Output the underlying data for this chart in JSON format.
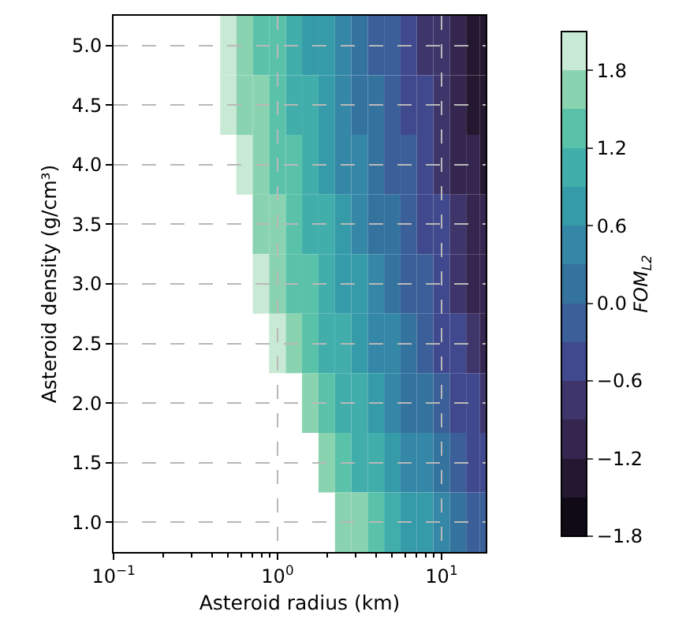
{
  "chart_data": {
    "type": "heatmap",
    "xlabel": "Asteroid radius (km)",
    "ylabel": "Asteroid density (g/cm³)",
    "clabel": "FOM$_{L2}$",
    "x": [
      0.4,
      0.5,
      0.63,
      0.79,
      1,
      1.26,
      1.58,
      2,
      2.51,
      3.16,
      3.98,
      5.01,
      6.31,
      7.94,
      10,
      12.59,
      15.85,
      18.6
    ],
    "y_categories": [
      "5.0",
      "4.5",
      "4.0",
      "3.5",
      "3.0",
      "2.5",
      "2.0",
      "1.5",
      "1.0"
    ],
    "cells": [
      [
        null,
        1.93,
        1.71,
        1.5,
        1.28,
        1.06,
        0.85,
        0.63,
        0.42,
        0.2,
        -0.02,
        -0.23,
        -0.45,
        -0.66,
        -0.88,
        -1.1,
        -1.31,
        -1.46
      ],
      [
        null,
        2.01,
        1.8,
        1.58,
        1.37,
        1.15,
        0.93,
        0.72,
        0.5,
        0.29,
        0.07,
        -0.15,
        -0.36,
        -0.58,
        -0.79,
        -1.01,
        -1.23,
        -1.38
      ],
      [
        null,
        null,
        1.89,
        1.68,
        1.46,
        1.25,
        1.03,
        0.81,
        0.6,
        0.38,
        0.17,
        -0.05,
        -0.27,
        -0.48,
        -0.7,
        -0.91,
        -1.13,
        -1.28
      ],
      [
        null,
        null,
        null,
        1.79,
        1.57,
        1.36,
        1.14,
        0.92,
        0.71,
        0.49,
        0.28,
        0.06,
        -0.16,
        -0.37,
        -0.59,
        -0.81,
        -1.02,
        -1.17
      ],
      [
        null,
        null,
        null,
        1.91,
        1.7,
        1.48,
        1.26,
        1.05,
        0.83,
        0.62,
        0.4,
        0.18,
        -0.03,
        -0.25,
        -0.46,
        -0.68,
        -0.9,
        -1.05
      ],
      [
        null,
        null,
        null,
        null,
        1.84,
        1.63,
        1.41,
        1.2,
        0.98,
        0.76,
        0.55,
        0.33,
        0.12,
        -0.1,
        -0.32,
        -0.53,
        -0.75,
        -0.9
      ],
      [
        null,
        null,
        null,
        null,
        null,
        null,
        1.59,
        1.38,
        1.16,
        0.95,
        0.73,
        0.51,
        0.3,
        0.08,
        -0.13,
        -0.35,
        -0.57,
        -0.72
      ],
      [
        null,
        null,
        null,
        null,
        null,
        null,
        null,
        1.61,
        1.4,
        1.18,
        0.96,
        0.75,
        0.53,
        0.32,
        0.1,
        -0.12,
        -0.33,
        -0.48
      ],
      [
        null,
        null,
        null,
        null,
        null,
        null,
        null,
        null,
        1.73,
        1.51,
        1.29,
        1.08,
        0.86,
        0.65,
        0.43,
        0.21,
        0.0,
        -0.15
      ]
    ],
    "colors": [
      "#0f0a15",
      "#241830",
      "#35264f",
      "#3e356b",
      "#40498e",
      "#3a5f99",
      "#35739f",
      "#3487a6",
      "#369ba9",
      "#41aeab",
      "#5ac2a9",
      "#8ad3b0",
      "#c8ead4"
    ],
    "clim": [
      -1.8,
      2.1
    ],
    "cticks": [
      {
        "value": -1.8,
        "label": "−1.8"
      },
      {
        "value": -1.2,
        "label": "−1.2"
      },
      {
        "value": -0.6,
        "label": "−0.6"
      },
      {
        "value": 0,
        "label": "0.0"
      },
      {
        "value": 0.6,
        "label": "0.6"
      },
      {
        "value": 1.2,
        "label": "1.2"
      },
      {
        "value": 1.8,
        "label": "1.8"
      }
    ],
    "log": "x",
    "xlim": [
      0.1,
      18.6
    ],
    "xticks": [
      {
        "value": 0.1,
        "label": "10$^{−1}$"
      },
      {
        "value": 0.2,
        "label": null
      },
      {
        "value": 0.3,
        "label": null
      },
      {
        "value": 0.4,
        "label": null
      },
      {
        "value": 0.5,
        "label": null
      },
      {
        "value": 0.6,
        "label": null
      },
      {
        "value": 0.7,
        "label": null
      },
      {
        "value": 0.8,
        "label": null
      },
      {
        "value": 0.9,
        "label": null
      },
      {
        "value": 1,
        "label": "10$^{0}$"
      },
      {
        "value": 2,
        "label": null
      },
      {
        "value": 3,
        "label": null
      },
      {
        "value": 4,
        "label": null
      },
      {
        "value": 5,
        "label": null
      },
      {
        "value": 6,
        "label": null
      },
      {
        "value": 7,
        "label": null
      },
      {
        "value": 8,
        "label": null
      },
      {
        "value": 9,
        "label": null
      },
      {
        "value": 10,
        "label": "10$^{1}$"
      }
    ],
    "grid": true
  }
}
